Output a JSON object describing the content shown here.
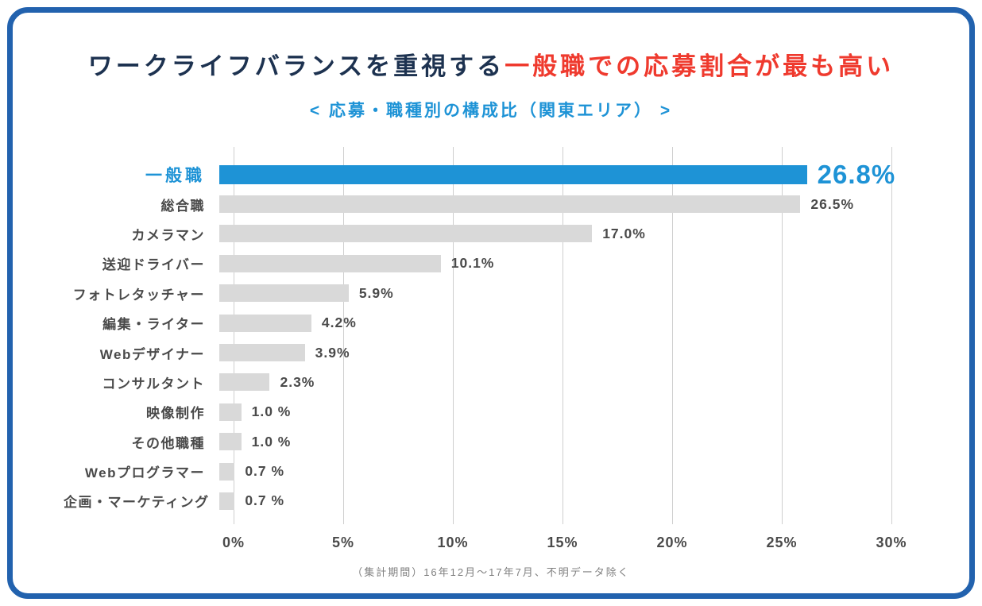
{
  "theme": {
    "frame_color": "#2262ae",
    "accent_color": "#1e93d6",
    "red_color": "#ef3a2e",
    "navy_color": "#1d3250",
    "bar_gray": "#d9d9d9",
    "grid_color": "#cfcfcf"
  },
  "header": {
    "title_dark": "ワークライフバランスを重視する",
    "title_red": "一般職での応募割合が最も高い",
    "subtitle": "< 応募・職種別の構成比（関東エリア） >"
  },
  "chart_data": {
    "type": "bar",
    "orientation": "horizontal",
    "title": "ワークライフバランスを重視する一般職での応募割合が最も高い",
    "subtitle": "応募・職種別の構成比（関東エリア）",
    "categories": [
      "一般職",
      "総合職",
      "カメラマン",
      "送迎ドライバー",
      "フォトレタッチャー",
      "編集・ライター",
      "Webデザイナー",
      "コンサルタント",
      "映像制作",
      "その他職種",
      "Webプログラマー",
      "企画・マーケティング"
    ],
    "values": [
      26.8,
      26.5,
      17.0,
      10.1,
      5.9,
      4.2,
      3.9,
      2.3,
      1.0,
      1.0,
      0.7,
      0.7
    ],
    "value_labels": [
      "26.8%",
      "26.5%",
      "17.0%",
      "10.1%",
      "5.9%",
      "4.2%",
      "3.9%",
      "2.3%",
      "1.0 %",
      "1.0 %",
      "0.7 %",
      "0.7 %"
    ],
    "x_ticks": [
      "0%",
      "5%",
      "10%",
      "15%",
      "20%",
      "25%",
      "30%"
    ],
    "xlim": [
      0,
      30
    ],
    "xlabel": "",
    "ylabel": "",
    "grid": "vertical",
    "legend": "none",
    "highlight_index": 0,
    "bar_color": "#d9d9d9",
    "highlight_color": "#1e93d6"
  },
  "footer": {
    "note": "（集計期間）16年12月～17年7月、不明データ除く"
  }
}
